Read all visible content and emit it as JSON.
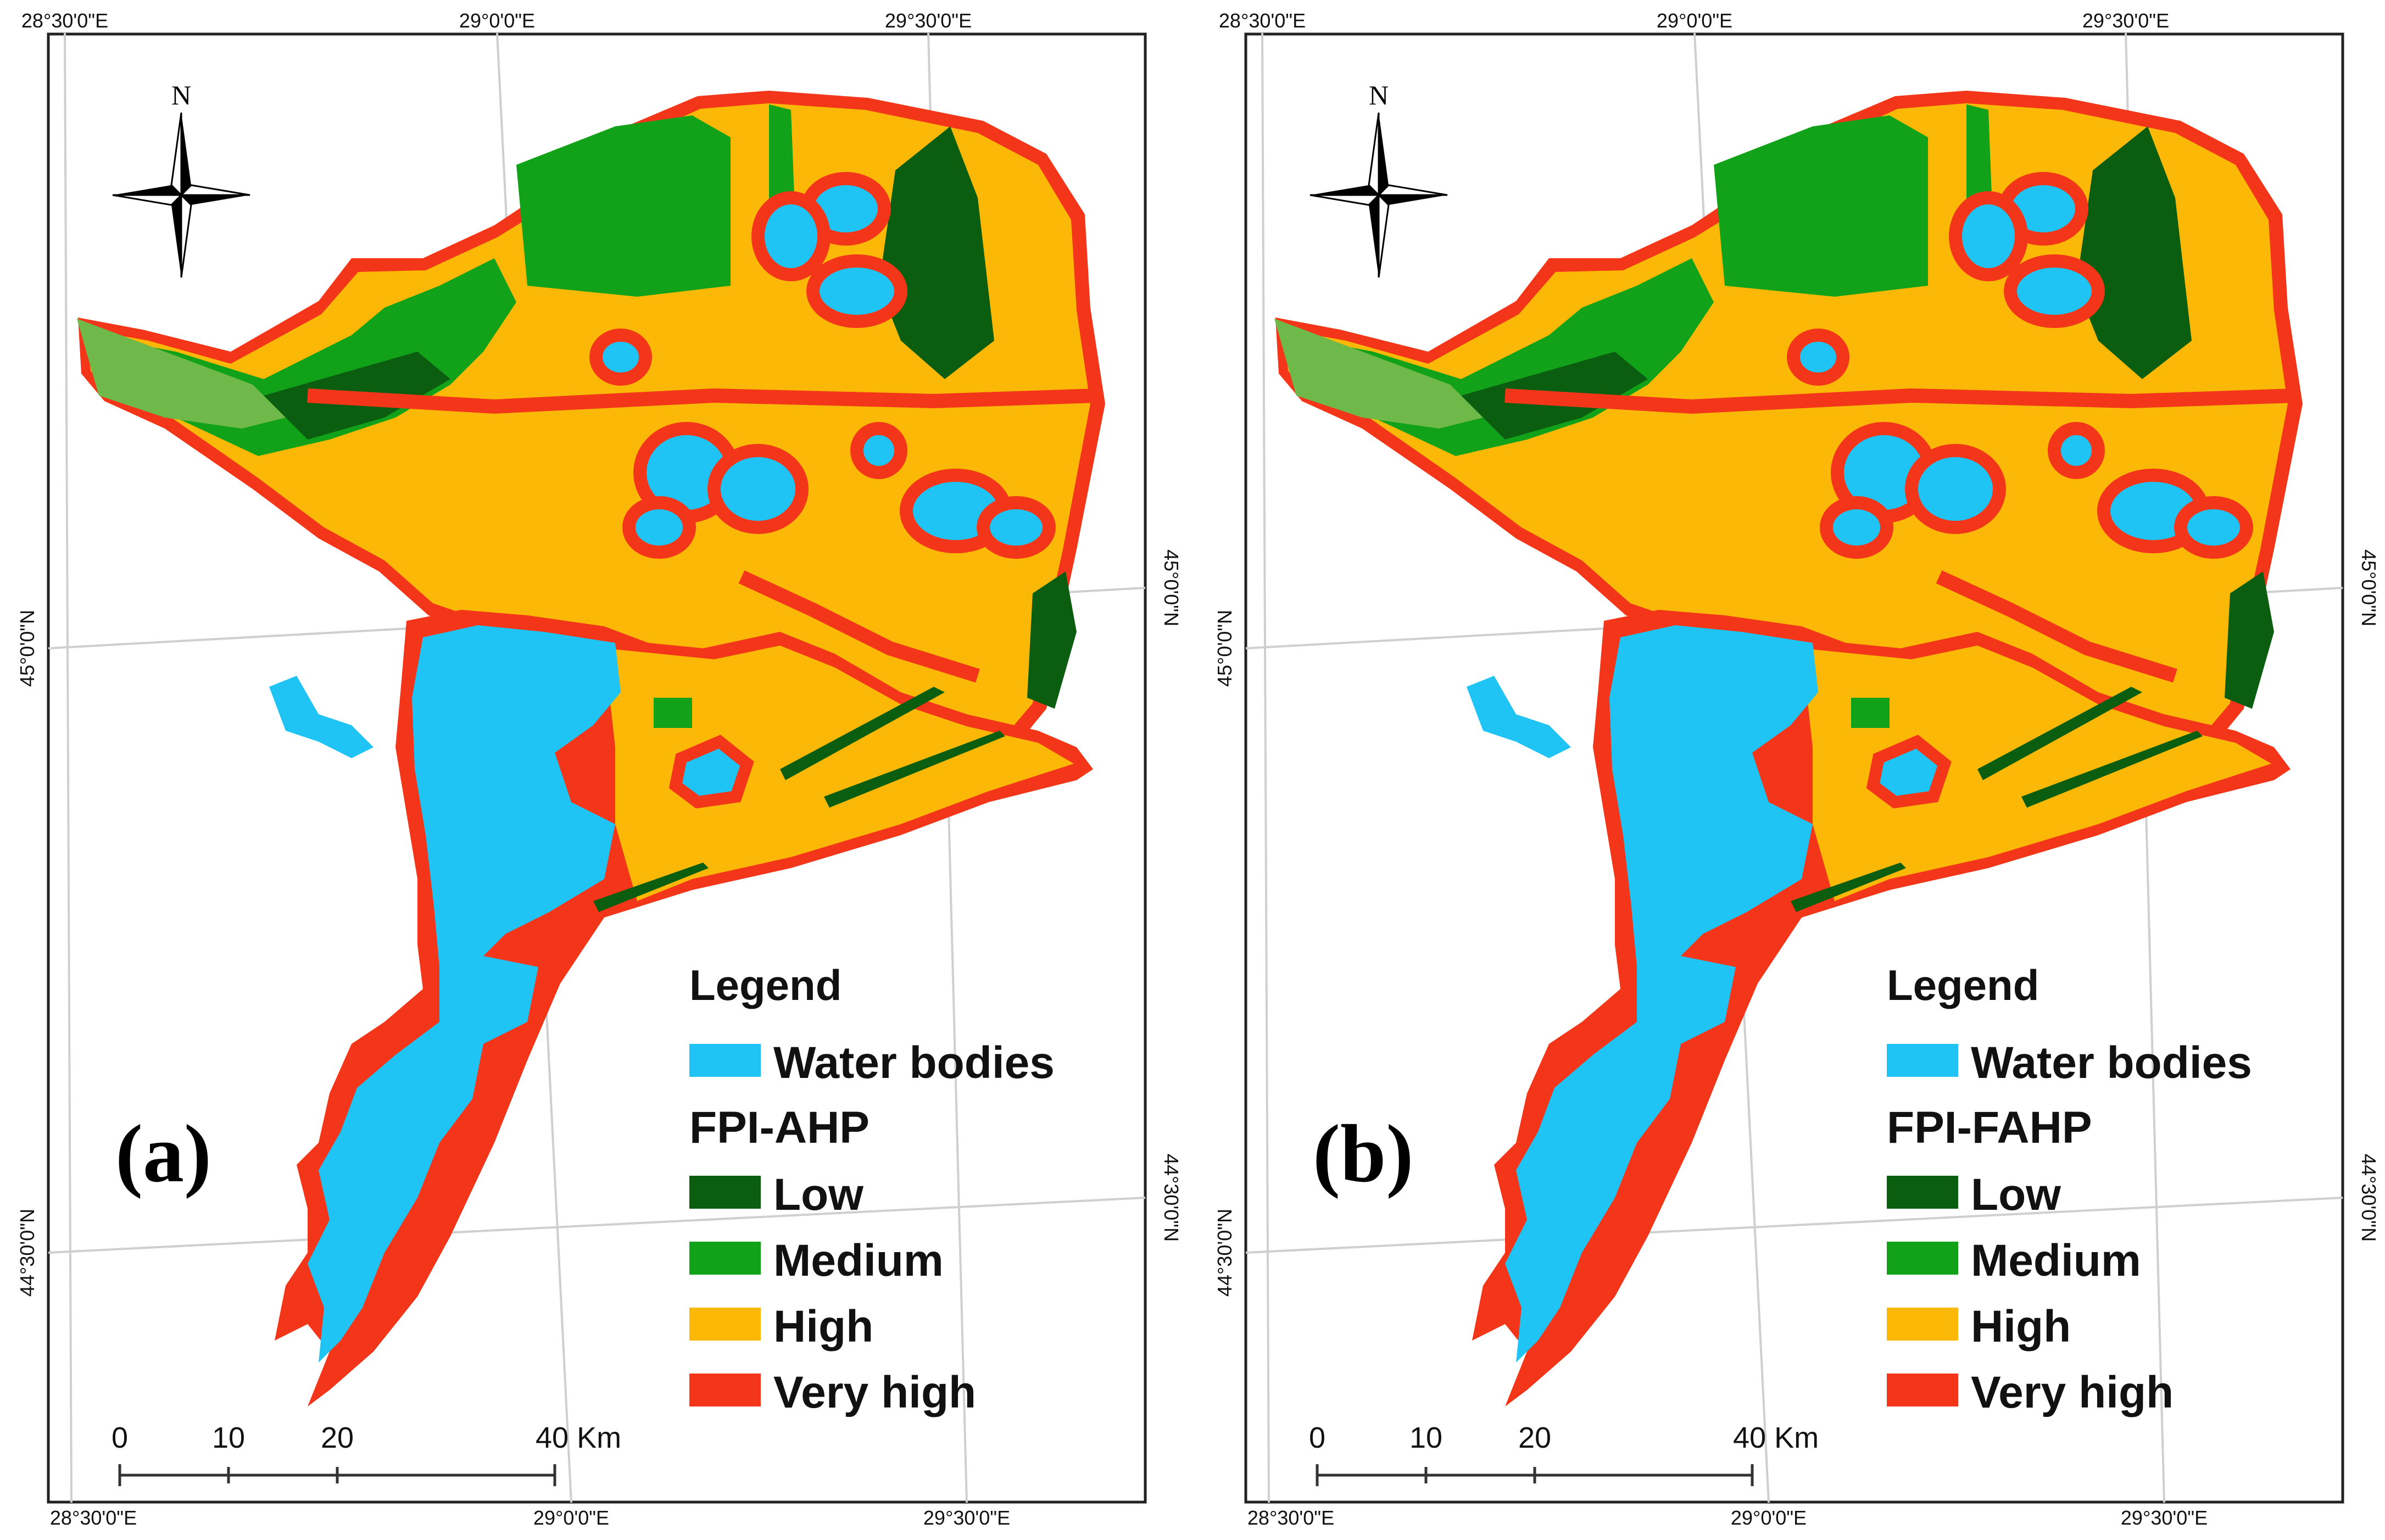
{
  "colors": {
    "water": "#1fc4f4",
    "low": "#0b5e10",
    "medium": "#12a21a",
    "high": "#fbb806",
    "very_high": "#f3361a",
    "frame": "#222222",
    "grid": "#cfcfcf"
  },
  "grid_labels": {
    "top": [
      "28°30'0\"E",
      "29°0'0\"E",
      "29°30'0\"E"
    ],
    "bottom": [
      "28°30'0\"E",
      "29°0'0\"E",
      "29°30'0\"E"
    ],
    "left": [
      "45°0'0\"N",
      "44°30'0\"N"
    ],
    "right": [
      "45°0'0\"N",
      "44°30'0\"N"
    ]
  },
  "north_arrow": {
    "label": "N"
  },
  "scale_bar": {
    "labels": [
      "0",
      "10",
      "20",
      "40 Km"
    ]
  },
  "panels": [
    {
      "label": "(a)",
      "legend": {
        "title": "Legend",
        "water_label": "Water bodies",
        "index_title": "FPI-AHP",
        "classes": [
          {
            "name": "Low",
            "color_key": "low"
          },
          {
            "name": "Medium",
            "color_key": "medium"
          },
          {
            "name": "High",
            "color_key": "high"
          },
          {
            "name": "Very high",
            "color_key": "very_high"
          }
        ]
      }
    },
    {
      "label": "(b)",
      "legend": {
        "title": "Legend",
        "water_label": "Water bodies",
        "index_title": "FPI-FAHP",
        "classes": [
          {
            "name": "Low",
            "color_key": "low"
          },
          {
            "name": "Medium",
            "color_key": "medium"
          },
          {
            "name": "High",
            "color_key": "high"
          },
          {
            "name": "Very high",
            "color_key": "very_high"
          }
        ]
      }
    }
  ]
}
